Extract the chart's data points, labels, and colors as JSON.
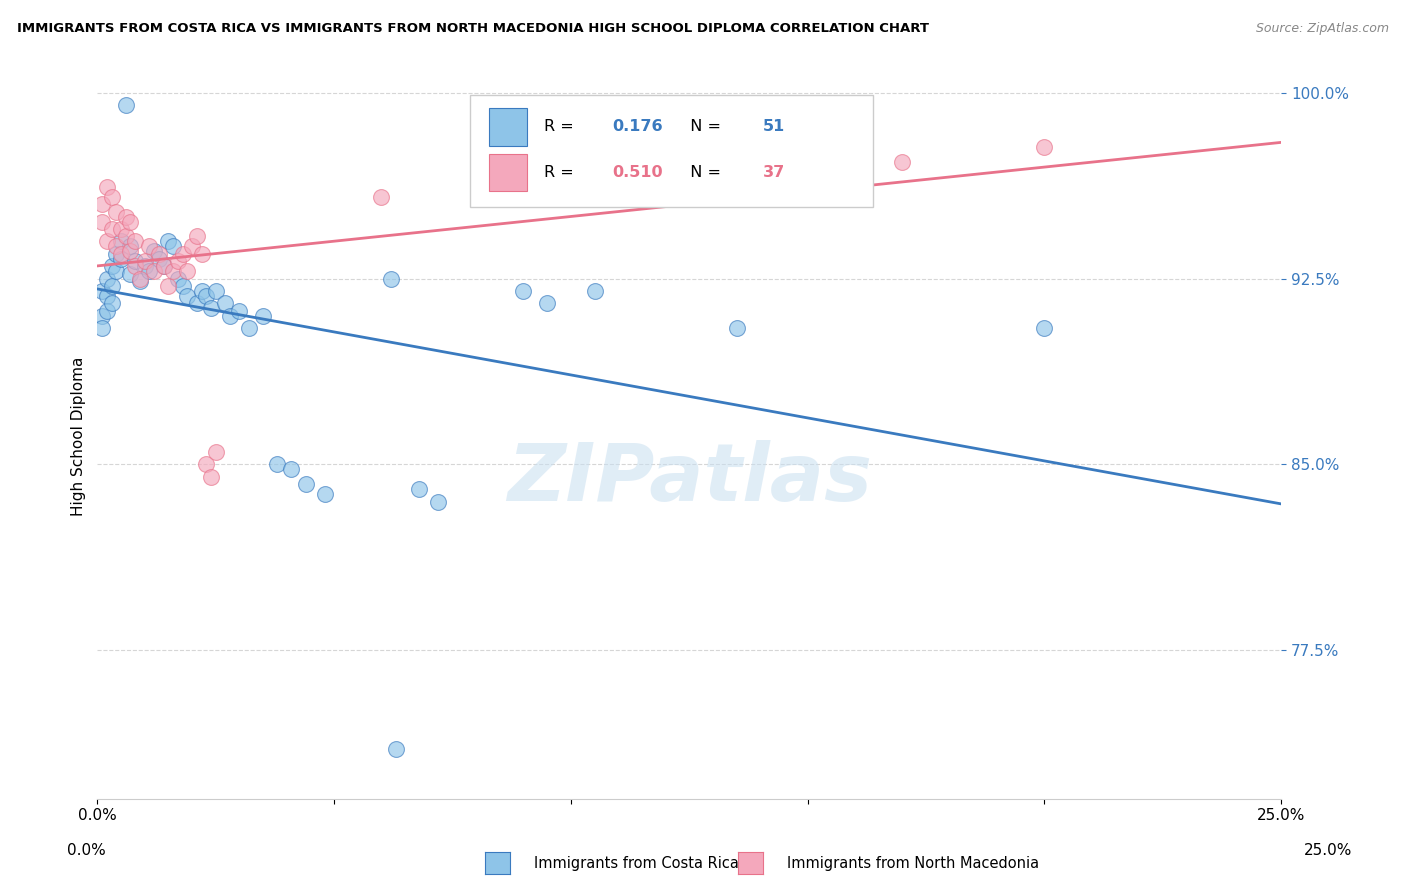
{
  "title": "IMMIGRANTS FROM COSTA RICA VS IMMIGRANTS FROM NORTH MACEDONIA HIGH SCHOOL DIPLOMA CORRELATION CHART",
  "source": "Source: ZipAtlas.com",
  "ylabel": "High School Diploma",
  "legend_label_blue": "Immigrants from Costa Rica",
  "legend_label_pink": "Immigrants from North Macedonia",
  "R_blue": 0.176,
  "N_blue": 51,
  "R_pink": 0.51,
  "N_pink": 37,
  "xlim": [
    0.0,
    0.25
  ],
  "ylim": [
    0.715,
    1.008
  ],
  "color_blue": "#8ec4e8",
  "color_pink": "#f4a8bc",
  "color_blue_line": "#3a7abf",
  "color_pink_line": "#e8728a",
  "watermark": "ZIPatlas",
  "blue_seed": 42,
  "pink_seed": 77
}
